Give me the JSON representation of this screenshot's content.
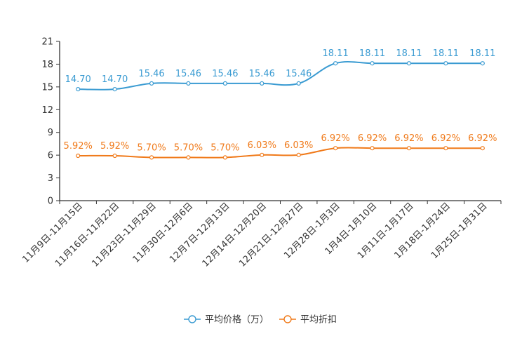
{
  "chart_data": {
    "type": "line",
    "title": "",
    "xlabel": "",
    "ylabel": "",
    "categories": [
      "11月9日-11月15日",
      "11月16日-11月22日",
      "11月23日-11月29日",
      "11月30日-12月6日",
      "12月7日-12月13日",
      "12月14日-12月20日",
      "12月21日-12月27日",
      "12月28日-1月3日",
      "1月4日-1月10日",
      "1月11日-1月17日",
      "1月18日-1月24日",
      "1月25日-1月31日"
    ],
    "ylim": [
      0,
      21
    ],
    "yticks": [
      0,
      3,
      6,
      9,
      12,
      15,
      18,
      21
    ],
    "grid": false,
    "legend_position": "bottom-center",
    "series": [
      {
        "name": "平均价格（万）",
        "color": "#3a9bd2",
        "values": [
          14.7,
          14.7,
          15.46,
          15.46,
          15.46,
          15.46,
          15.46,
          18.11,
          18.11,
          18.11,
          18.11,
          18.11
        ],
        "labels": [
          "14.70",
          "14.70",
          "15.46",
          "15.46",
          "15.46",
          "15.46",
          "15.46",
          "18.11",
          "18.11",
          "18.11",
          "18.11",
          "18.11"
        ]
      },
      {
        "name": "平均折扣",
        "color": "#f07a1a",
        "values": [
          5.92,
          5.92,
          5.7,
          5.7,
          5.7,
          6.03,
          6.03,
          6.92,
          6.92,
          6.92,
          6.92,
          6.92
        ],
        "labels": [
          "5.92%",
          "5.92%",
          "5.70%",
          "5.70%",
          "5.70%",
          "6.03%",
          "6.03%",
          "6.92%",
          "6.92%",
          "6.92%",
          "6.92%",
          "6.92%"
        ]
      }
    ]
  }
}
